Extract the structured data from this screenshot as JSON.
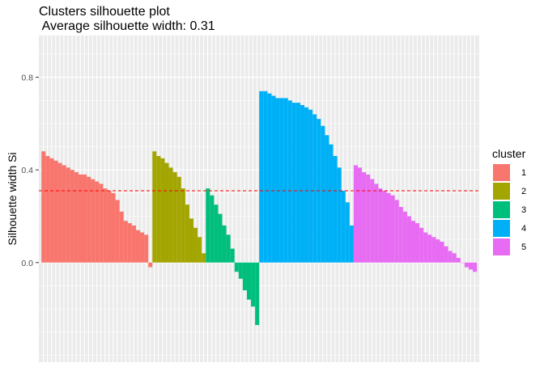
{
  "chart_data": {
    "type": "bar",
    "title": "Clusters silhouette plot",
    "subtitle": " Average silhouette width: 0.31",
    "xlabel": "",
    "ylabel": "Silhouette width Si",
    "ylim": [
      -0.43,
      0.98
    ],
    "yticks": [
      0.0,
      0.4,
      0.8
    ],
    "ytick_labels": [
      "0.0",
      "0.4",
      "0.8"
    ],
    "average_line": 0.31,
    "average_line_color": "#ff0000",
    "grid": true,
    "background": "#ebebeb",
    "legend_position": "right",
    "legend_title": "cluster",
    "series": [
      {
        "name": "1",
        "color": "#f8766d",
        "values": [
          0.48,
          0.46,
          0.45,
          0.44,
          0.43,
          0.42,
          0.41,
          0.4,
          0.39,
          0.38,
          0.38,
          0.37,
          0.36,
          0.35,
          0.34,
          0.32,
          0.31,
          0.3,
          0.27,
          0.22,
          0.18,
          0.17,
          0.16,
          0.14,
          0.13,
          0.12,
          -0.02
        ]
      },
      {
        "name": "2",
        "color": "#a3a500",
        "values": [
          0.48,
          0.46,
          0.45,
          0.43,
          0.41,
          0.39,
          0.37,
          0.32,
          0.25,
          0.19,
          0.15,
          0.11,
          0.04
        ]
      },
      {
        "name": "3",
        "color": "#00bf7d",
        "values": [
          0.32,
          0.29,
          0.25,
          0.21,
          0.16,
          0.12,
          0.06,
          -0.04,
          -0.07,
          -0.12,
          -0.16,
          -0.19,
          -0.27
        ]
      },
      {
        "name": "4",
        "color": "#00b0f6",
        "values": [
          0.74,
          0.74,
          0.73,
          0.72,
          0.71,
          0.71,
          0.71,
          0.7,
          0.69,
          0.69,
          0.68,
          0.67,
          0.66,
          0.64,
          0.62,
          0.59,
          0.55,
          0.51,
          0.46,
          0.41,
          0.31,
          0.26,
          0.16
        ]
      },
      {
        "name": "5",
        "color": "#e76bf3",
        "values": [
          0.42,
          0.41,
          0.39,
          0.38,
          0.36,
          0.34,
          0.32,
          0.31,
          0.3,
          0.29,
          0.27,
          0.24,
          0.22,
          0.2,
          0.18,
          0.17,
          0.15,
          0.13,
          0.12,
          0.11,
          0.1,
          0.09,
          0.07,
          0.05,
          0.04,
          0.02,
          0.0,
          -0.02,
          -0.03,
          -0.04
        ]
      }
    ]
  }
}
